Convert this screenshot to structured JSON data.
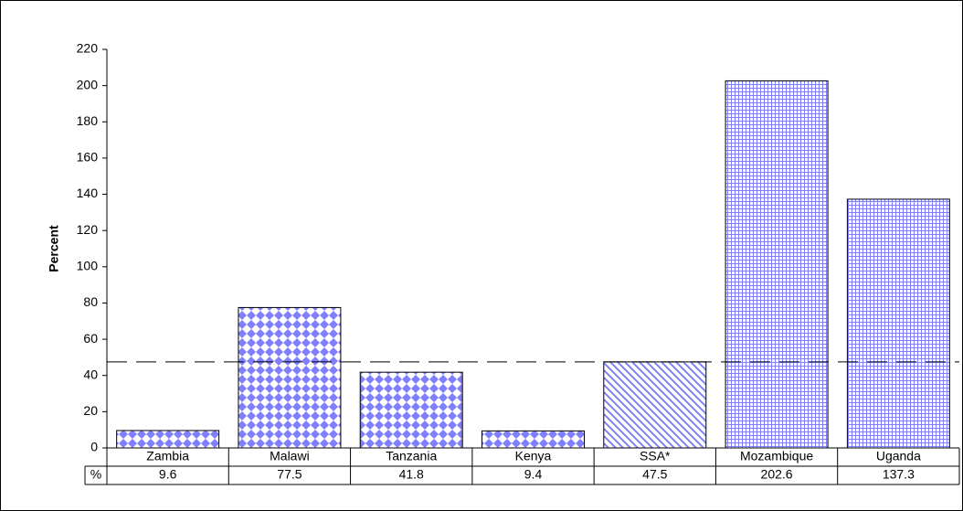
{
  "chart_data": {
    "type": "bar",
    "y_label": "Percent",
    "categories": [
      "Zambia",
      "Malawi",
      "Tanzania",
      "Kenya",
      "SSA*",
      "Mozambique",
      "Uganda"
    ],
    "values": [
      9.6,
      77.5,
      41.8,
      9.4,
      47.5,
      202.6,
      137.3
    ],
    "patterns": [
      "diamond",
      "diamond",
      "diamond",
      "diamond",
      "hatch",
      "grid",
      "grid"
    ],
    "color": "#8080ff",
    "ylim": [
      0,
      220
    ],
    "yticks": [
      0,
      20,
      40,
      60,
      80,
      100,
      120,
      140,
      160,
      180,
      200,
      220
    ],
    "reference_line": 47.5,
    "table_label": "%"
  }
}
